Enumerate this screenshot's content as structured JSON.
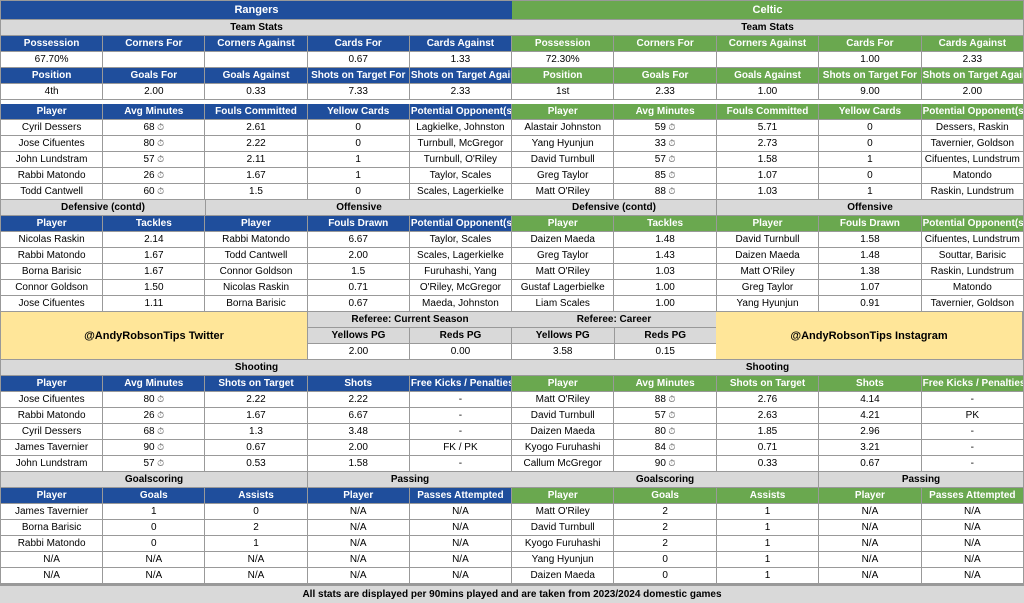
{
  "colors": {
    "rangers": "#1f4e9c",
    "celtic": "#6aa84f",
    "gray": "#d9d9d9",
    "promo": "#ffe699"
  },
  "team1": {
    "name": "Rangers"
  },
  "team2": {
    "name": "Celtic"
  },
  "stats_headers1": [
    "Possession",
    "Corners For",
    "Corners Against",
    "Cards For",
    "Cards Against"
  ],
  "t1_stats1": [
    "67.70%",
    "",
    "",
    "0.67",
    "1.33"
  ],
  "t2_stats1": [
    "72.30%",
    "",
    "",
    "1.00",
    "2.33"
  ],
  "stats_headers2": [
    "Position",
    "Goals For",
    "Goals Against",
    "Shots on Target For",
    "Shots on Target Against"
  ],
  "t1_stats2": [
    "4th",
    "2.00",
    "0.33",
    "7.33",
    "2.33"
  ],
  "t2_stats2": [
    "1st",
    "2.33",
    "1.00",
    "9.00",
    "2.00"
  ],
  "player_headers": [
    "Player",
    "Avg Minutes",
    "Fouls Committed",
    "Yellow Cards",
    "Potential Opponent(s)"
  ],
  "t1_players": [
    [
      "Cyril Dessers",
      "68",
      "2.61",
      "0",
      "Lagkielke, Johnston"
    ],
    [
      "Jose Cifuentes",
      "80",
      "2.22",
      "0",
      "Turnbull, McGregor"
    ],
    [
      "John Lundstram",
      "57",
      "2.11",
      "1",
      "Turnbull, O'Riley"
    ],
    [
      "Rabbi Matondo",
      "26",
      "1.67",
      "1",
      "Taylor, Scales"
    ],
    [
      "Todd Cantwell",
      "60",
      "1.5",
      "0",
      "Scales, Lagerkielke"
    ]
  ],
  "t2_players": [
    [
      "Alastair Johnston",
      "59",
      "5.71",
      "0",
      "Dessers, Raskin"
    ],
    [
      "Yang Hyunjun",
      "33",
      "2.73",
      "0",
      "Tavernier, Goldson"
    ],
    [
      "David Turnbull",
      "57",
      "1.58",
      "1",
      "Cifuentes, Lundstrum"
    ],
    [
      "Greg Taylor",
      "85",
      "1.07",
      "0",
      "Matondo"
    ],
    [
      "Matt O'Riley",
      "88",
      "1.03",
      "1",
      "Raskin, Lundstrum"
    ]
  ],
  "def_header": "Defensive (contd)",
  "off_header": "Offensive",
  "def_cols": [
    "Player",
    "Tackles"
  ],
  "off_cols": [
    "Player",
    "Fouls Drawn",
    "Potential Opponent(s)"
  ],
  "t1_def": [
    [
      "Nicolas Raskin",
      "2.14"
    ],
    [
      "Rabbi Matondo",
      "1.67"
    ],
    [
      "Borna Barisic",
      "1.67"
    ],
    [
      "Connor Goldson",
      "1.50"
    ],
    [
      "Jose Cifuentes",
      "1.11"
    ]
  ],
  "t1_off": [
    [
      "Rabbi Matondo",
      "6.67",
      "Taylor, Scales"
    ],
    [
      "Todd Cantwell",
      "2.00",
      "Scales, Lagerkielke"
    ],
    [
      "Connor Goldson",
      "1.5",
      "Furuhashi, Yang"
    ],
    [
      "Nicolas Raskin",
      "0.71",
      "O'Riley, McGregor"
    ],
    [
      "Borna Barisic",
      "0.67",
      "Maeda, Johnston"
    ]
  ],
  "t2_def": [
    [
      "Daizen Maeda",
      "1.48"
    ],
    [
      "Greg Taylor",
      "1.43"
    ],
    [
      "Matt O'Riley",
      "1.03"
    ],
    [
      "Gustaf Lagerbielke",
      "1.00"
    ],
    [
      "Liam Scales",
      "1.00"
    ]
  ],
  "t2_off": [
    [
      "David Turnbull",
      "1.58",
      "Cifuentes, Lundstrum"
    ],
    [
      "Daizen Maeda",
      "1.48",
      "Souttar, Barisic"
    ],
    [
      "Matt O'Riley",
      "1.38",
      "Raskin, Lundstrum"
    ],
    [
      "Greg Taylor",
      "1.07",
      "Matondo"
    ],
    [
      "Yang Hyunjun",
      "0.91",
      "Tavernier, Goldson"
    ]
  ],
  "promo1": "@AndyRobsonTips Twitter",
  "promo2": "@AndyRobsonTips Instagram",
  "ref_season": "Referee: Current Season",
  "ref_career": "Referee: Career",
  "ref_cols": [
    "Yellows PG",
    "Reds PG"
  ],
  "ref_season_vals": [
    "2.00",
    "0.00"
  ],
  "ref_career_vals": [
    "3.58",
    "0.15"
  ],
  "shooting": "Shooting",
  "shoot_cols": [
    "Player",
    "Avg Minutes",
    "Shots on Target",
    "Shots",
    "Free Kicks / Penalties"
  ],
  "t1_shoot": [
    [
      "Jose Cifuentes",
      "80",
      "2.22",
      "2.22",
      "-"
    ],
    [
      "Rabbi Matondo",
      "26",
      "1.67",
      "6.67",
      "-"
    ],
    [
      "Cyril Dessers",
      "68",
      "1.3",
      "3.48",
      "-"
    ],
    [
      "James Tavernier",
      "90",
      "0.67",
      "2.00",
      "FK / PK"
    ],
    [
      "John Lundstram",
      "57",
      "0.53",
      "1.58",
      "-"
    ]
  ],
  "t2_shoot": [
    [
      "Matt O'Riley",
      "88",
      "2.76",
      "4.14",
      "-"
    ],
    [
      "David Turnbull",
      "57",
      "2.63",
      "4.21",
      "PK"
    ],
    [
      "Daizen Maeda",
      "80",
      "1.85",
      "2.96",
      "-"
    ],
    [
      "Kyogo Furuhashi",
      "84",
      "0.71",
      "3.21",
      "-"
    ],
    [
      "Callum McGregor",
      "90",
      "0.33",
      "0.67",
      "-"
    ]
  ],
  "goal_header": "Goalscoring",
  "pass_header": "Passing",
  "goal_cols": [
    "Player",
    "Goals",
    "Assists"
  ],
  "pass_cols": [
    "Player",
    "Passes Attempted"
  ],
  "t1_goals": [
    [
      "James Tavernier",
      "1",
      "0"
    ],
    [
      "Borna Barisic",
      "0",
      "2"
    ],
    [
      "Rabbi Matondo",
      "0",
      "1"
    ],
    [
      "N/A",
      "N/A",
      "N/A"
    ],
    [
      "N/A",
      "N/A",
      "N/A"
    ]
  ],
  "t1_pass": [
    [
      "N/A",
      "N/A"
    ],
    [
      "N/A",
      "N/A"
    ],
    [
      "N/A",
      "N/A"
    ],
    [
      "N/A",
      "N/A"
    ],
    [
      "N/A",
      "N/A"
    ]
  ],
  "t2_goals": [
    [
      "Matt O'Riley",
      "2",
      "1"
    ],
    [
      "David Turnbull",
      "2",
      "1"
    ],
    [
      "Kyogo Furuhashi",
      "2",
      "1"
    ],
    [
      "Yang Hyunjun",
      "0",
      "1"
    ],
    [
      "Daizen Maeda",
      "0",
      "1"
    ]
  ],
  "t2_pass": [
    [
      "N/A",
      "N/A"
    ],
    [
      "N/A",
      "N/A"
    ],
    [
      "N/A",
      "N/A"
    ],
    [
      "N/A",
      "N/A"
    ],
    [
      "N/A",
      "N/A"
    ]
  ],
  "footer": "All stats are displayed per 90mins played and are taken from 2023/2024 domestic games"
}
